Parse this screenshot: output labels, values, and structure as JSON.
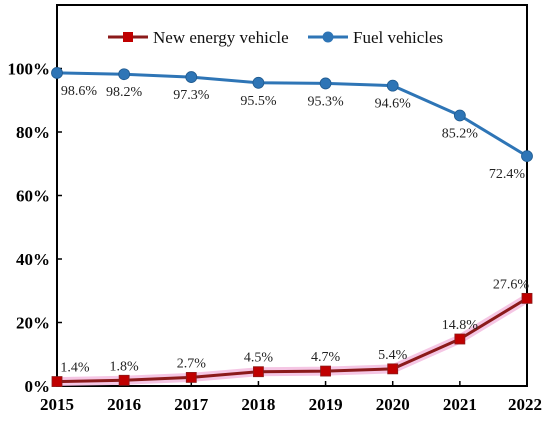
{
  "chart_data": {
    "type": "line",
    "categories": [
      "2015",
      "2016",
      "2017",
      "2018",
      "2019",
      "2020",
      "2021",
      "2022"
    ],
    "ylim": [
      0,
      120
    ],
    "yticks": [
      0,
      20,
      40,
      60,
      80,
      100
    ],
    "ytick_labels": [
      "0%",
      "20%",
      "40%",
      "60%",
      "80%",
      "100%"
    ],
    "grid": false,
    "legend_position": "top-right",
    "series": [
      {
        "name": "New energy vehicle",
        "values": [
          1.4,
          1.8,
          2.7,
          4.5,
          4.7,
          5.4,
          14.8,
          27.6
        ],
        "labels": [
          "1.4%",
          "1.8%",
          "2.7%",
          "4.5%",
          "4.7%",
          "5.4%",
          "14.8%",
          "27.6%"
        ],
        "color": "#c00000",
        "line_color": "#8b1a1a",
        "marker": "square"
      },
      {
        "name": "Fuel vehicles",
        "values": [
          98.6,
          98.2,
          97.3,
          95.5,
          95.3,
          94.6,
          85.2,
          72.4
        ],
        "labels": [
          "98.6%",
          "98.2%",
          "97.3%",
          "95.5%",
          "95.3%",
          "94.6%",
          "85.2%",
          "72.4%"
        ],
        "color": "#2e75b6",
        "line_color": "#2e75b6",
        "marker": "circle"
      }
    ]
  }
}
